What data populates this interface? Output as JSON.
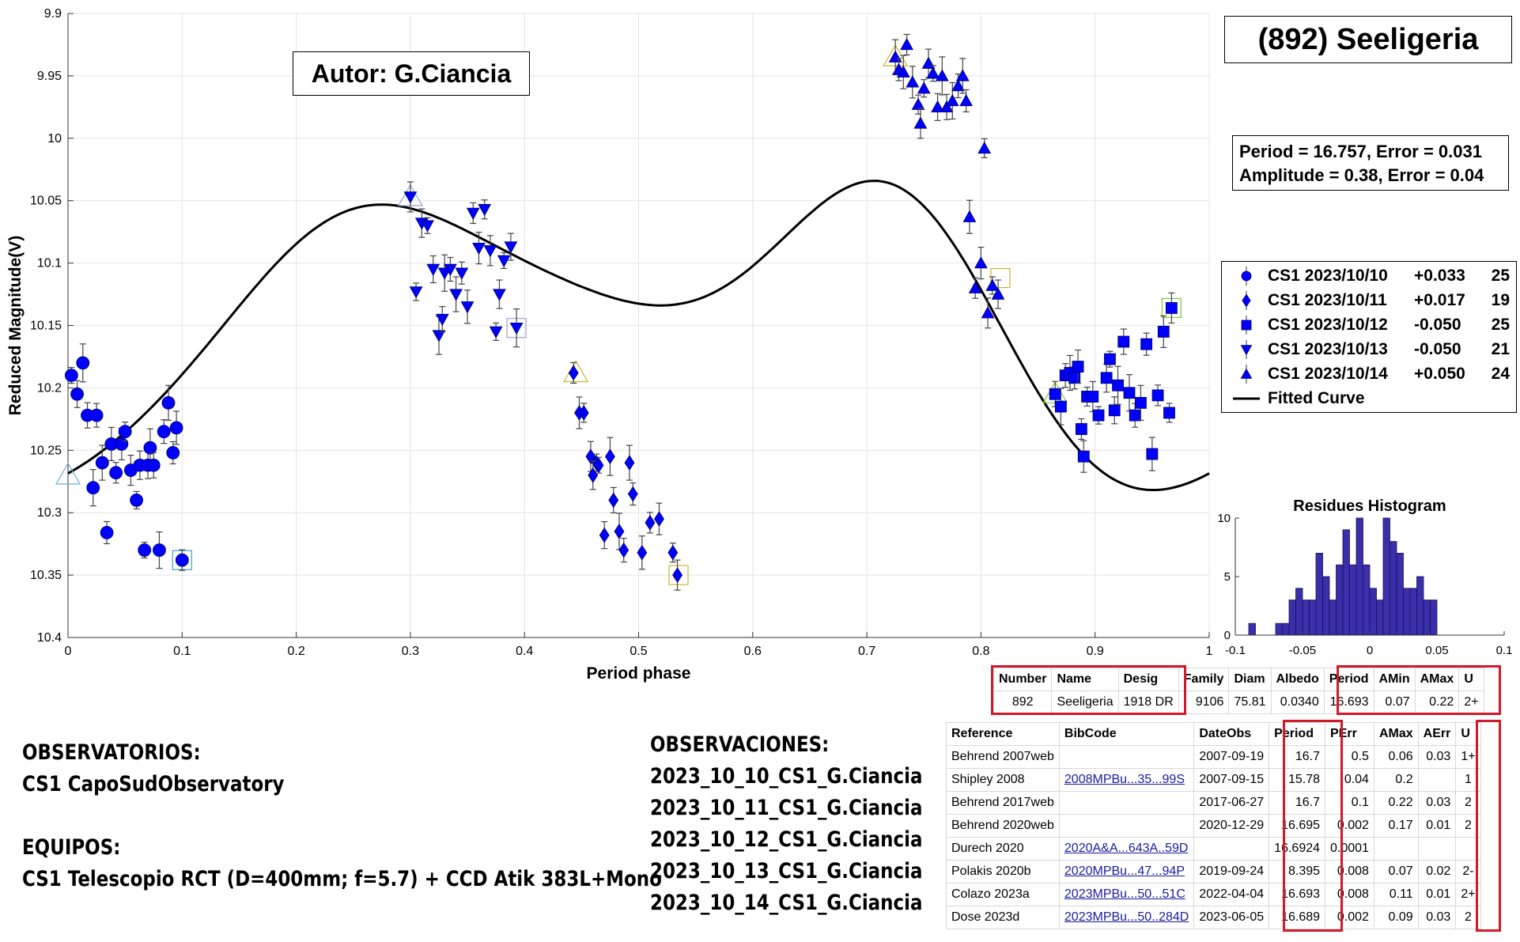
{
  "title": "(892) Seeligeria",
  "author": "Autor: G.Ciancia",
  "period_info": {
    "line1": "Period =  16.757, Error = 0.031",
    "line2": "Amplitude = 0.38, Error = 0.04"
  },
  "legend": [
    {
      "label": "CS1 2023/10/10",
      "offset": "+0.033",
      "n": "25",
      "marker": "circle"
    },
    {
      "label": "CS1 2023/10/11",
      "offset": "+0.017",
      "n": "19",
      "marker": "diamond"
    },
    {
      "label": "CS1 2023/10/12",
      "offset": "-0.050",
      "n": "25",
      "marker": "square"
    },
    {
      "label": "CS1 2023/10/13",
      "offset": "-0.050",
      "n": "21",
      "marker": "triangle-down"
    },
    {
      "label": "CS1 2023/10/14",
      "offset": "+0.050",
      "n": "24",
      "marker": "triangle-up"
    },
    {
      "label": "Fitted Curve",
      "offset": "",
      "n": "",
      "marker": "line"
    }
  ],
  "colors": {
    "marker": "#0000ff",
    "curve": "#000000",
    "histogram": "#3a2fa8",
    "highlight": "#d11a2a"
  },
  "chart_data": [
    {
      "type": "scatter",
      "xlabel": "Period phase",
      "ylabel": "Reduced Magnitude(V)",
      "xlim": [
        0,
        1
      ],
      "ylim": [
        10.4,
        9.9
      ],
      "y_reversed": true,
      "x_ticks": [
        "0",
        "0.1",
        "0.2",
        "0.3",
        "0.4",
        "0.5",
        "0.6",
        "0.7",
        "0.8",
        "0.9",
        "1"
      ],
      "y_ticks": [
        "9.9",
        "9.95",
        "10",
        "10.05",
        "10.1",
        "10.15",
        "10.2",
        "10.25",
        "10.3",
        "10.35",
        "10.4"
      ],
      "grid": true,
      "legend_position": "right",
      "series": [
        {
          "name": "CS1 2023/10/10",
          "marker": "circle",
          "points": [
            [
              0.003,
              10.19
            ],
            [
              0.008,
              10.205
            ],
            [
              0.013,
              10.18
            ],
            [
              0.017,
              10.222
            ],
            [
              0.022,
              10.28
            ],
            [
              0.025,
              10.222
            ],
            [
              0.03,
              10.26
            ],
            [
              0.034,
              10.316
            ],
            [
              0.038,
              10.245
            ],
            [
              0.042,
              10.268
            ],
            [
              0.047,
              10.245
            ],
            [
              0.05,
              10.235
            ],
            [
              0.055,
              10.266
            ],
            [
              0.06,
              10.29
            ],
            [
              0.063,
              10.262
            ],
            [
              0.067,
              10.33
            ],
            [
              0.07,
              10.262
            ],
            [
              0.072,
              10.248
            ],
            [
              0.075,
              10.262
            ],
            [
              0.08,
              10.33
            ],
            [
              0.084,
              10.235
            ],
            [
              0.088,
              10.212
            ],
            [
              0.092,
              10.252
            ],
            [
              0.095,
              10.232
            ],
            [
              0.1,
              10.338
            ]
          ]
        },
        {
          "name": "CS1 2023/10/11",
          "marker": "diamond",
          "points": [
            [
              0.443,
              10.188
            ],
            [
              0.448,
              10.22
            ],
            [
              0.452,
              10.22
            ],
            [
              0.458,
              10.255
            ],
            [
              0.463,
              10.26
            ],
            [
              0.46,
              10.27
            ],
            [
              0.465,
              10.262
            ],
            [
              0.47,
              10.318
            ],
            [
              0.475,
              10.255
            ],
            [
              0.478,
              10.29
            ],
            [
              0.483,
              10.315
            ],
            [
              0.487,
              10.33
            ],
            [
              0.492,
              10.26
            ],
            [
              0.495,
              10.285
            ],
            [
              0.503,
              10.332
            ],
            [
              0.51,
              10.308
            ],
            [
              0.518,
              10.305
            ],
            [
              0.53,
              10.332
            ],
            [
              0.534,
              10.35
            ]
          ]
        },
        {
          "name": "CS1 2023/10/12",
          "marker": "square",
          "points": [
            [
              0.865,
              10.205
            ],
            [
              0.87,
              10.215
            ],
            [
              0.874,
              10.19
            ],
            [
              0.878,
              10.188
            ],
            [
              0.882,
              10.192
            ],
            [
              0.885,
              10.183
            ],
            [
              0.888,
              10.233
            ],
            [
              0.89,
              10.255
            ],
            [
              0.893,
              10.207
            ],
            [
              0.898,
              10.207
            ],
            [
              0.903,
              10.222
            ],
            [
              0.91,
              10.192
            ],
            [
              0.913,
              10.177
            ],
            [
              0.917,
              10.218
            ],
            [
              0.92,
              10.198
            ],
            [
              0.925,
              10.163
            ],
            [
              0.93,
              10.204
            ],
            [
              0.935,
              10.222
            ],
            [
              0.94,
              10.212
            ],
            [
              0.945,
              10.165
            ],
            [
              0.95,
              10.253
            ],
            [
              0.955,
              10.206
            ],
            [
              0.96,
              10.155
            ],
            [
              0.965,
              10.22
            ],
            [
              0.967,
              10.136
            ]
          ]
        },
        {
          "name": "CS1 2023/10/13",
          "marker": "triangle-down",
          "points": [
            [
              0.3,
              10.047
            ],
            [
              0.305,
              10.123
            ],
            [
              0.31,
              10.068
            ],
            [
              0.315,
              10.07
            ],
            [
              0.32,
              10.105
            ],
            [
              0.325,
              10.158
            ],
            [
              0.328,
              10.145
            ],
            [
              0.33,
              10.108
            ],
            [
              0.335,
              10.105
            ],
            [
              0.34,
              10.125
            ],
            [
              0.345,
              10.108
            ],
            [
              0.35,
              10.135
            ],
            [
              0.355,
              10.06
            ],
            [
              0.36,
              10.088
            ],
            [
              0.365,
              10.057
            ],
            [
              0.37,
              10.09
            ],
            [
              0.375,
              10.155
            ],
            [
              0.378,
              10.125
            ],
            [
              0.382,
              10.098
            ],
            [
              0.388,
              10.087
            ],
            [
              0.393,
              10.152
            ]
          ]
        },
        {
          "name": "CS1 2023/10/14",
          "marker": "triangle-up",
          "points": [
            [
              0.725,
              9.935
            ],
            [
              0.728,
              9.945
            ],
            [
              0.732,
              9.947
            ],
            [
              0.735,
              9.925
            ],
            [
              0.74,
              9.955
            ],
            [
              0.745,
              9.973
            ],
            [
              0.747,
              9.988
            ],
            [
              0.75,
              9.96
            ],
            [
              0.754,
              9.94
            ],
            [
              0.758,
              9.948
            ],
            [
              0.762,
              9.975
            ],
            [
              0.766,
              9.95
            ],
            [
              0.77,
              9.975
            ],
            [
              0.775,
              9.97
            ],
            [
              0.78,
              9.958
            ],
            [
              0.784,
              9.95
            ],
            [
              0.787,
              9.97
            ],
            [
              0.79,
              10.063
            ],
            [
              0.795,
              10.12
            ],
            [
              0.8,
              10.1
            ],
            [
              0.803,
              10.008
            ],
            [
              0.806,
              10.14
            ],
            [
              0.81,
              10.118
            ],
            [
              0.815,
              10.125
            ]
          ]
        },
        {
          "name": "Fitted Curve",
          "type": "line",
          "mean": 10.135,
          "harmonics": [
            [
              0.075,
              -0.012
            ],
            [
              0.0725,
              -0.02
            ],
            [
              -0.007,
              -0.013
            ],
            [
              -0.007,
              0.003
            ]
          ]
        }
      ],
      "highlighted_points": [
        [
          0.0,
          10.27,
          "triangle"
        ],
        [
          0.1,
          10.338,
          "square"
        ],
        [
          0.3,
          10.047,
          "triangle"
        ],
        [
          0.393,
          10.152,
          "square"
        ],
        [
          0.445,
          10.188,
          "triangle"
        ],
        [
          0.535,
          10.35,
          "square"
        ],
        [
          0.725,
          9.935,
          "triangle"
        ],
        [
          0.817,
          10.112,
          "square"
        ],
        [
          0.865,
          10.205,
          "triangle"
        ],
        [
          0.967,
          10.136,
          "square"
        ]
      ]
    },
    {
      "type": "bar",
      "title": "Residues Histogram",
      "xlim": [
        -0.1,
        0.1
      ],
      "ylim": [
        0,
        10
      ],
      "x_ticks": [
        "-0.1",
        "-0.05",
        "0",
        "0.05",
        "0.1"
      ],
      "y_ticks": [
        "0",
        "5",
        "10"
      ],
      "bin_width": 0.005,
      "bin_start": -0.09,
      "values": [
        1,
        0,
        0,
        0,
        1,
        1,
        3,
        4,
        3,
        3,
        7,
        5,
        3,
        6,
        9,
        6,
        10,
        6,
        4,
        3,
        10,
        8,
        7,
        4,
        4,
        5,
        3,
        3
      ]
    },
    {
      "type": "table",
      "columns": [
        "Number",
        "Name",
        "Desig",
        "Family",
        "Diam",
        "Albedo",
        "Period",
        "AMin",
        "AMax",
        "U"
      ],
      "rows": [
        [
          "892",
          "Seeligeria",
          "1918 DR",
          "9106",
          "75.81",
          "0.0340",
          "16.693",
          "0.07",
          "0.22",
          "2+"
        ]
      ]
    },
    {
      "type": "table",
      "columns": [
        "Reference",
        "BibCode",
        "DateObs",
        "Period",
        "PErr",
        "AMax",
        "AErr",
        "U"
      ],
      "rows": [
        [
          "Behrend 2007web",
          "",
          "2007-09-19",
          "16.7",
          "0.5",
          "0.06",
          "0.03",
          "1+"
        ],
        [
          "Shipley 2008",
          "2008MPBu...35...99S",
          "2007-09-15",
          "15.78",
          "0.04",
          "0.2",
          "",
          "1"
        ],
        [
          "Behrend 2017web",
          "",
          "2017-06-27",
          "16.7",
          "0.1",
          "0.22",
          "0.03",
          "2"
        ],
        [
          "Behrend 2020web",
          "",
          "2020-12-29",
          "16.695",
          "0.002",
          "0.17",
          "0.01",
          "2"
        ],
        [
          "Durech 2020",
          "2020A&A...643A..59D",
          "",
          "16.6924",
          "0.0001",
          "",
          "",
          ""
        ],
        [
          "Polakis 2020b",
          "2020MPBu...47...94P",
          "2019-09-24",
          "8.395",
          "0.008",
          "0.07",
          "0.02",
          "2-"
        ],
        [
          "Colazo 2023a",
          "2023MPBu...50...51C",
          "2022-04-04",
          "16.693",
          "0.008",
          "0.11",
          "0.01",
          "2+"
        ],
        [
          "Dose 2023d",
          "2023MPBu...50..284D",
          "2023-06-05",
          "16.689",
          "0.002",
          "0.09",
          "0.03",
          "2"
        ]
      ]
    }
  ],
  "observatories": {
    "heading": "OBSERVATORIOS:",
    "line": "CS1 CapoSudObservatory",
    "equip_heading": "EQUIPOS:",
    "equip_line": "CS1 Telescopio RCT (D=400mm; f=5.7) + CCD Atik 383L+Mono"
  },
  "observations": {
    "heading": "OBSERVACIONES:",
    "lines": [
      "2023_10_10_CS1_G.Ciancia",
      "2023_10_11_CS1_G.Ciancia",
      "2023_10_12_CS1_G.Ciancia",
      "2023_10_13_CS1_G.Ciancia",
      "2023_10_14_CS1_G.Ciancia"
    ]
  }
}
